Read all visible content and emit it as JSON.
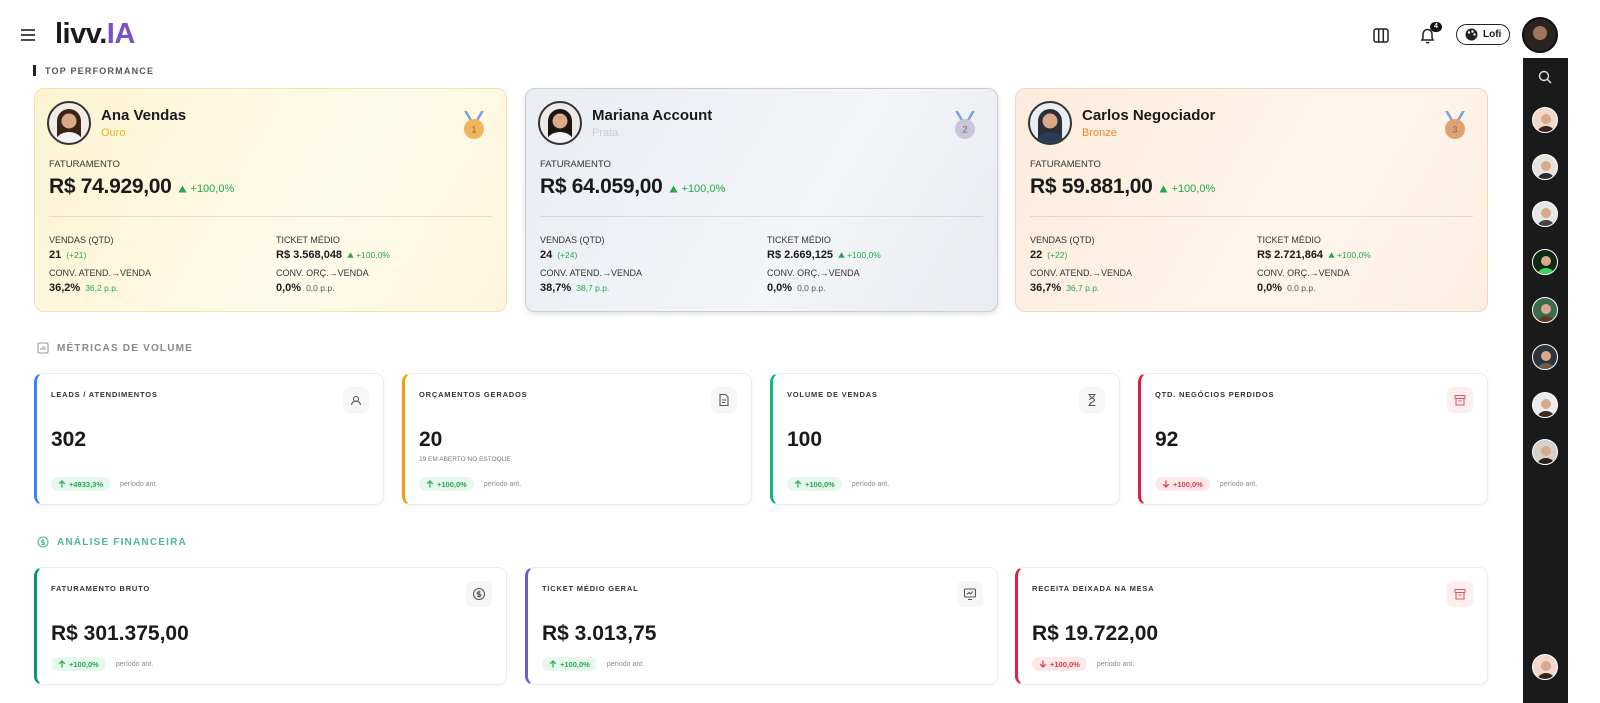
{
  "header": {
    "logo_main": "livv.",
    "logo_accent": "IA",
    "notifications": "4",
    "theme": "Lofi"
  },
  "top_performance": {
    "title": "TOP PERFORMANCE",
    "cards": [
      {
        "name": "Ana Vendas",
        "tier": "Ouro",
        "rank": "1",
        "revenue_label": "FATURAMENTO",
        "revenue": "R$ 74.929,00",
        "revenue_change": "+100,0%",
        "metrics": [
          {
            "label": "VENDAS (QTD)",
            "value": "21",
            "delta": "(+21)"
          },
          {
            "label": "TICKET MÉDIO",
            "value": "R$ 3.568,048",
            "delta": "+100,0%"
          },
          {
            "label": "CONV. ATEND.→VENDA",
            "value": "36,2%",
            "delta": "36,2 p.p."
          },
          {
            "label": "CONV. ORÇ.→VENDA",
            "value": "0,0%",
            "delta": "0,0 p.p."
          }
        ]
      },
      {
        "name": "Mariana Account",
        "tier": "Prata",
        "rank": "2",
        "revenue_label": "FATURAMENTO",
        "revenue": "R$ 64.059,00",
        "revenue_change": "+100,0%",
        "metrics": [
          {
            "label": "VENDAS (QTD)",
            "value": "24",
            "delta": "(+24)"
          },
          {
            "label": "TICKET MÉDIO",
            "value": "R$ 2.669,125",
            "delta": "+100,0%"
          },
          {
            "label": "CONV. ATEND.→VENDA",
            "value": "38,7%",
            "delta": "38,7 p.p."
          },
          {
            "label": "CONV. ORÇ.→VENDA",
            "value": "0,0%",
            "delta": "0,0 p.p."
          }
        ]
      },
      {
        "name": "Carlos Negociador",
        "tier": "Bronze",
        "rank": "3",
        "revenue_label": "FATURAMENTO",
        "revenue": "R$ 59.881,00",
        "revenue_change": "+100,0%",
        "metrics": [
          {
            "label": "VENDAS (QTD)",
            "value": "22",
            "delta": "(+22)"
          },
          {
            "label": "TICKET MÉDIO",
            "value": "R$ 2.721,864",
            "delta": "+100,0%"
          },
          {
            "label": "CONV. ATEND.→VENDA",
            "value": "36,7%",
            "delta": "36,7 p.p."
          },
          {
            "label": "CONV. ORÇ.→VENDA",
            "value": "0,0%",
            "delta": "0,0 p.p."
          }
        ]
      }
    ]
  },
  "volume": {
    "title": "MÉTRICAS DE VOLUME",
    "cards": [
      {
        "title": "LEADS / ATENDIMENTOS",
        "value": "302",
        "change": "+4933,3%",
        "trend": "up",
        "period": "período ant.",
        "color": "#3b82f6"
      },
      {
        "title": "ORÇAMENTOS GERADOS",
        "value": "20",
        "note": "19 EM ABERTO NO ESTOQUE",
        "change": "+100,0%",
        "trend": "up",
        "period": "período ant.",
        "color": "#f59e0b"
      },
      {
        "title": "VOLUME DE VENDAS",
        "value": "100",
        "change": "+100,0%",
        "trend": "up",
        "period": "período ant.",
        "color": "#10b981"
      },
      {
        "title": "QTD. NEGÓCIOS PERDIDOS",
        "value": "92",
        "change": "+100,0%",
        "trend": "down",
        "period": "período ant.",
        "color": "#e11d48"
      }
    ]
  },
  "financial": {
    "title": "ANÁLISE FINANCEIRA",
    "cards": [
      {
        "title": "FATURAMENTO BRUTO",
        "value": "R$ 301.375,00",
        "change": "+100,0%",
        "trend": "up",
        "period": "período ant.",
        "color": "#059669"
      },
      {
        "title": "TICKET MÉDIO GERAL",
        "value": "R$ 3.013,75",
        "change": "+100,0%",
        "trend": "up",
        "period": "período ant.",
        "color": "#6d5bd0"
      },
      {
        "title": "RECEITA DEIXADA NA MESA",
        "value": "R$ 19.722,00",
        "change": "+100,0%",
        "trend": "down",
        "period": "período ant.",
        "color": "#e11d48"
      }
    ]
  }
}
